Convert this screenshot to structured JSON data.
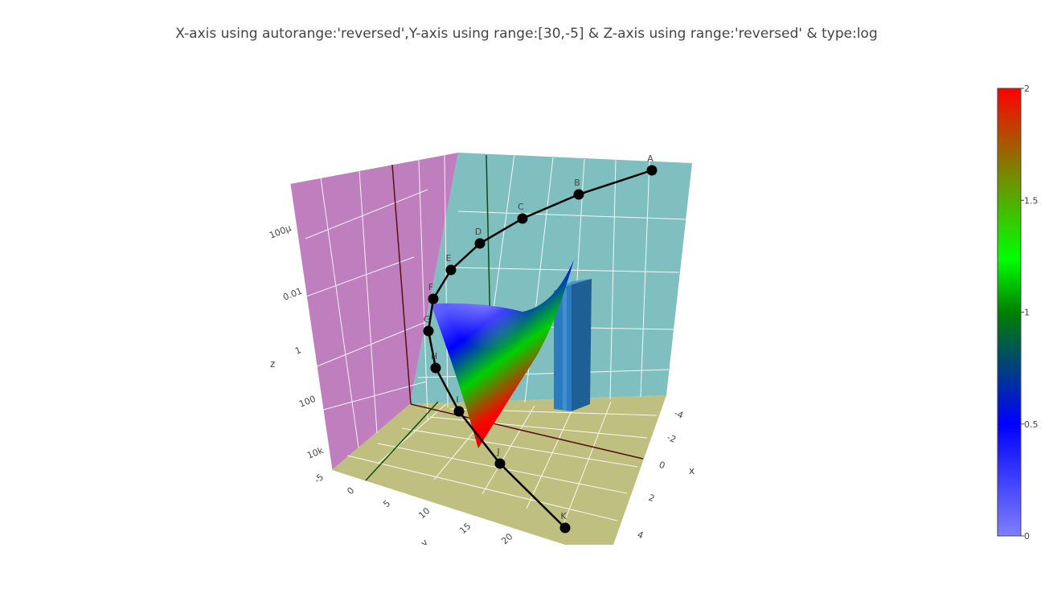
{
  "chart_data": {
    "type": "3d-scatter-surface",
    "title": "X-axis using autorange:'reversed',Y-axis using range:[30,-5] & Z-axis using range:'reversed' & type:log",
    "axes": {
      "x": {
        "title": "x",
        "autorange": "reversed",
        "ticks": [
          "-4",
          "-2",
          "0",
          "2",
          "4"
        ]
      },
      "y": {
        "title": "y",
        "range": [
          30,
          -5
        ],
        "ticks": [
          "-5",
          "0",
          "5",
          "10",
          "15",
          "20"
        ]
      },
      "z": {
        "title": "z",
        "type": "log",
        "autorange": "reversed",
        "ticks": [
          "10k",
          "100",
          "1",
          "0.01",
          "100μ"
        ]
      }
    },
    "scatter_line": {
      "labels": [
        "A",
        "B",
        "C",
        "D",
        "E",
        "F",
        "G",
        "H",
        "I",
        "J",
        "K"
      ],
      "color": "#000000"
    },
    "surface": {
      "colorscale": [
        "#7f7fff",
        "#0000ff",
        "#00ff00",
        "#ff0000"
      ]
    },
    "bar_color": "#1f77b4",
    "colorbar": {
      "ticks": [
        "0",
        "0.5",
        "1",
        "1.5",
        "2"
      ],
      "range": [
        0,
        2
      ]
    },
    "walls": {
      "xz": "#7fbfbf",
      "yz": "#bf7fbf",
      "floor": "#bfbf7f"
    }
  }
}
